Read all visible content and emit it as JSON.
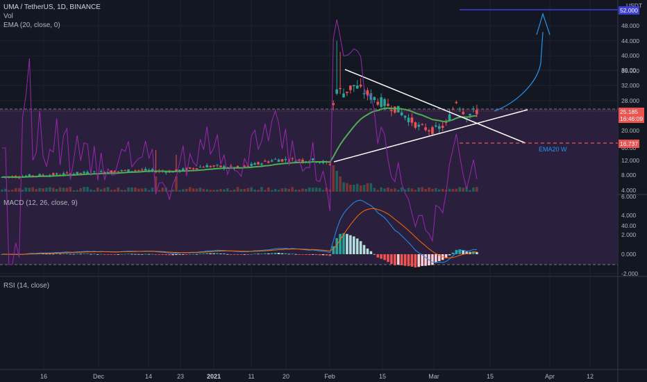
{
  "legend": {
    "title": "UMA / TetherUS, 1D, BINANCE",
    "vol": "Vol",
    "ema": "EMA (20, close, 0)",
    "macd": "MACD (12, 26, close, 9)",
    "rsi": "RSI (14, close)"
  },
  "price_axis": {
    "currency": "USDT",
    "labels": [
      "48.000",
      "44.000",
      "40.000",
      "36.000",
      "32.000",
      "28.000",
      "24.000",
      "20.000",
      "16.000",
      "12.000",
      "8.000",
      "4.000"
    ]
  },
  "badges": {
    "current_price": "25.185",
    "countdown": "16:46:09",
    "level_price": "16.737",
    "top_price": "52.000"
  },
  "macd_axis": {
    "labels": [
      "6.000",
      "4.000",
      "2.000",
      "0.000",
      "-2.000"
    ]
  },
  "rsi_axis": {
    "labels": [
      "100.00",
      "80.00",
      "60.00",
      "40.00"
    ]
  },
  "time_axis": {
    "labels": [
      {
        "text": "16",
        "bold": false
      },
      {
        "text": "Dec",
        "bold": false
      },
      {
        "text": "14",
        "bold": false
      },
      {
        "text": "23",
        "bold": false
      },
      {
        "text": "2021",
        "bold": true
      },
      {
        "text": "11",
        "bold": false
      },
      {
        "text": "20",
        "bold": false
      },
      {
        "text": "Feb",
        "bold": false
      },
      {
        "text": "15",
        "bold": false
      },
      {
        "text": "Mar",
        "bold": false
      },
      {
        "text": "15",
        "bold": false
      },
      {
        "text": "Apr",
        "bold": false
      },
      {
        "text": "12",
        "bold": false
      }
    ]
  },
  "annotations": {
    "ema_note": "EMA20 W"
  },
  "colors": {
    "background": "#131722",
    "up": "#26a69a",
    "down": "#ef5350",
    "ema": "#4caf50",
    "macd_line": "#2196f3",
    "signal_line": "#ff6d00",
    "rsi_line": "#9c27b0",
    "rsi_band": "#2a1f3d",
    "drawing_blue": "#2196f3",
    "level_red": "#ef5350",
    "top_line": "#3f3fd9",
    "trendline": "#ffffff"
  }
}
